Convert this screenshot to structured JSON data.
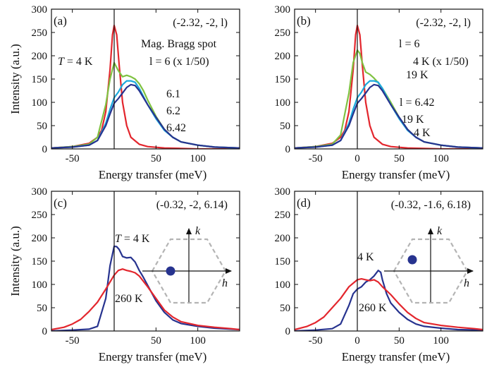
{
  "figure": {
    "colors": {
      "red": "#e3262d",
      "green": "#7fc241",
      "cyan": "#1ba8dc",
      "navy": "#27338f",
      "gray": "#b4b4b4",
      "axis": "#111111"
    }
  },
  "chart_data": [
    {
      "type": "line",
      "panel_label": "(a)",
      "coords": "(-2.32, -2, l)",
      "xlabel": "Energy transfer (meV)",
      "ylabel": "Intensity (a.u.)",
      "xlim": [
        -75,
        150
      ],
      "ylim": [
        0,
        300
      ],
      "xticks": [
        -50,
        0,
        50,
        100
      ],
      "xtick_labels": [
        "-50",
        "",
        "50",
        "100"
      ],
      "yticks": [
        0,
        50,
        100,
        150,
        200,
        250,
        300
      ],
      "ytick_labels": [
        "0",
        "50",
        "100",
        "150",
        "200",
        "250",
        "300"
      ],
      "series": [
        {
          "name": "Mag. Bragg spot l = 6 (x 1/50)",
          "color": "red",
          "x": [
            -75,
            -50,
            -30,
            -20,
            -15,
            -10,
            -5,
            -2,
            0,
            3,
            6,
            10,
            15,
            20,
            30,
            40,
            60,
            80,
            100,
            150
          ],
          "y": [
            2,
            5,
            12,
            25,
            40,
            80,
            170,
            245,
            265,
            245,
            180,
            100,
            50,
            25,
            10,
            5,
            2,
            1,
            0,
            0
          ]
        },
        {
          "name": "6.1",
          "color": "green",
          "x": [
            -75,
            -50,
            -30,
            -20,
            -10,
            -5,
            0,
            5,
            10,
            15,
            20,
            25,
            30,
            35,
            40,
            50,
            60,
            70,
            80,
            100,
            120,
            150
          ],
          "y": [
            2,
            5,
            10,
            25,
            95,
            150,
            185,
            168,
            155,
            158,
            155,
            150,
            140,
            125,
            105,
            70,
            42,
            25,
            15,
            8,
            4,
            2
          ]
        },
        {
          "name": "6.2",
          "color": "cyan",
          "x": [
            -75,
            -50,
            -30,
            -20,
            -10,
            -5,
            0,
            5,
            10,
            15,
            20,
            25,
            30,
            40,
            50,
            60,
            70,
            80,
            100,
            120,
            150
          ],
          "y": [
            2,
            4,
            8,
            18,
            55,
            85,
            110,
            122,
            138,
            146,
            146,
            143,
            130,
            95,
            65,
            40,
            25,
            15,
            8,
            4,
            2
          ]
        },
        {
          "name": "6.42",
          "color": "navy",
          "x": [
            -75,
            -50,
            -30,
            -20,
            -10,
            -5,
            0,
            5,
            10,
            15,
            20,
            25,
            30,
            40,
            50,
            60,
            70,
            80,
            100,
            120,
            150
          ],
          "y": [
            2,
            4,
            8,
            18,
            50,
            75,
            98,
            108,
            120,
            132,
            138,
            136,
            125,
            95,
            68,
            42,
            25,
            15,
            8,
            4,
            2
          ]
        }
      ],
      "annotations": [
        {
          "id": "temp",
          "text_prefix": "T",
          "text": " = 4 K",
          "color": "axis"
        },
        {
          "id": "bragg1",
          "text": "Mag. Bragg spot",
          "color": "red"
        },
        {
          "id": "bragg2",
          "text": "l = 6  (x 1/50)",
          "color": "red"
        },
        {
          "id": "l61",
          "text": "6.1",
          "color": "green"
        },
        {
          "id": "l62",
          "text": "6.2",
          "color": "cyan"
        },
        {
          "id": "l642",
          "text": "6.42",
          "color": "navy"
        }
      ]
    },
    {
      "type": "line",
      "panel_label": "(b)",
      "coords": "(-2.32, -2, l)",
      "xlabel": "Energy transfer (meV)",
      "ylabel": "",
      "xlim": [
        -75,
        150
      ],
      "ylim": [
        0,
        300
      ],
      "xticks": [
        -50,
        0,
        50,
        100
      ],
      "xtick_labels": [
        "-50",
        "0",
        "50",
        "100"
      ],
      "yticks": [
        0,
        50,
        100,
        150,
        200,
        250,
        300
      ],
      "ytick_labels": [
        "0",
        "50",
        "100",
        "150",
        "200",
        "250",
        "300"
      ],
      "series": [
        {
          "name": "l = 6, 4 K (x 1/50)",
          "color": "red",
          "x": [
            -75,
            -50,
            -30,
            -20,
            -15,
            -10,
            -5,
            -2,
            0,
            3,
            6,
            10,
            15,
            20,
            30,
            40,
            60,
            80,
            100,
            150
          ],
          "y": [
            2,
            5,
            12,
            25,
            40,
            80,
            170,
            245,
            265,
            245,
            180,
            100,
            50,
            25,
            10,
            5,
            2,
            1,
            0,
            0
          ]
        },
        {
          "name": "l = 6, 19 K",
          "color": "green",
          "x": [
            -75,
            -50,
            -30,
            -20,
            -10,
            -5,
            0,
            3,
            6,
            10,
            15,
            20,
            25,
            30,
            40,
            50,
            60,
            70,
            80,
            100,
            120,
            150
          ],
          "y": [
            2,
            5,
            10,
            30,
            120,
            185,
            212,
            205,
            185,
            165,
            160,
            152,
            142,
            130,
            100,
            68,
            42,
            25,
            15,
            8,
            4,
            2
          ]
        },
        {
          "name": "l = 6.42, 19 K",
          "color": "cyan",
          "x": [
            -75,
            -50,
            -30,
            -20,
            -10,
            -5,
            0,
            5,
            10,
            15,
            20,
            25,
            30,
            40,
            50,
            60,
            70,
            80,
            100,
            120,
            150
          ],
          "y": [
            2,
            4,
            8,
            18,
            55,
            85,
            110,
            122,
            138,
            146,
            146,
            143,
            130,
            95,
            65,
            40,
            25,
            15,
            8,
            4,
            2
          ]
        },
        {
          "name": "l = 6.42, 4 K",
          "color": "navy",
          "x": [
            -75,
            -50,
            -30,
            -20,
            -10,
            -5,
            0,
            5,
            10,
            15,
            20,
            25,
            30,
            40,
            50,
            60,
            70,
            80,
            100,
            120,
            150
          ],
          "y": [
            2,
            4,
            8,
            18,
            50,
            75,
            98,
            108,
            120,
            132,
            138,
            136,
            125,
            95,
            68,
            42,
            25,
            15,
            8,
            4,
            2
          ]
        }
      ],
      "annotations": [
        {
          "id": "l6",
          "text": "l = 6",
          "color": "axis"
        },
        {
          "id": "k4",
          "text": "4 K  (x 1/50)",
          "color": "red"
        },
        {
          "id": "k19a",
          "text": "19 K",
          "color": "green"
        },
        {
          "id": "l642",
          "text": "l = 6.42",
          "color": "axis"
        },
        {
          "id": "k19b",
          "text": "19 K",
          "color": "cyan"
        },
        {
          "id": "k4b",
          "text": "4 K",
          "color": "navy"
        }
      ]
    },
    {
      "type": "line",
      "panel_label": "(c)",
      "coords": "(-0.32, -2, 6.14)",
      "xlabel": "Energy transfer (meV)",
      "ylabel": "Intensity (a.u.)",
      "xlim": [
        -75,
        150
      ],
      "ylim": [
        0,
        300
      ],
      "xticks": [
        -50,
        0,
        50,
        100
      ],
      "xtick_labels": [
        "-50",
        "",
        "50",
        "100"
      ],
      "yticks": [
        0,
        50,
        100,
        150,
        200,
        250,
        300
      ],
      "ytick_labels": [
        "0",
        "50",
        "100",
        "150",
        "200",
        "250",
        "300"
      ],
      "series": [
        {
          "name": "T = 4 K",
          "color": "navy",
          "x": [
            -75,
            -50,
            -30,
            -20,
            -10,
            -5,
            0,
            3,
            6,
            10,
            15,
            20,
            25,
            30,
            35,
            40,
            50,
            60,
            70,
            80,
            100,
            120,
            150
          ],
          "y": [
            0,
            2,
            4,
            10,
            70,
            140,
            182,
            181,
            175,
            160,
            157,
            158,
            148,
            130,
            115,
            98,
            65,
            40,
            24,
            16,
            10,
            6,
            3
          ]
        },
        {
          "name": "260 K",
          "color": "red",
          "x": [
            -75,
            -60,
            -50,
            -40,
            -30,
            -20,
            -10,
            0,
            5,
            10,
            15,
            20,
            25,
            30,
            40,
            50,
            60,
            70,
            80,
            100,
            120,
            140,
            150
          ],
          "y": [
            3,
            8,
            15,
            25,
            42,
            62,
            90,
            120,
            130,
            133,
            130,
            128,
            125,
            118,
            95,
            70,
            45,
            30,
            20,
            12,
            8,
            5,
            3
          ]
        }
      ],
      "annotations": [
        {
          "id": "t4",
          "text_prefix": "T",
          "text": " = 4 K",
          "color": "navy"
        },
        {
          "id": "t260",
          "text": "260 K",
          "color": "red"
        }
      ],
      "inset": {
        "k_label": "k",
        "h_label": "h",
        "dot": "left"
      }
    },
    {
      "type": "line",
      "panel_label": "(d)",
      "coords": "(-0.32, -1.6, 6.18)",
      "xlabel": "Energy transfer (meV)",
      "ylabel": "",
      "xlim": [
        -75,
        150
      ],
      "ylim": [
        0,
        300
      ],
      "xticks": [
        -50,
        0,
        50,
        100
      ],
      "xtick_labels": [
        "-50",
        "0",
        "50",
        "100"
      ],
      "yticks": [
        0,
        50,
        100,
        150,
        200,
        250,
        300
      ],
      "ytick_labels": [
        "0",
        "50",
        "100",
        "150",
        "200",
        "250",
        "300"
      ],
      "series": [
        {
          "name": "4 K",
          "color": "navy",
          "x": [
            -75,
            -50,
            -30,
            -20,
            -10,
            -5,
            0,
            5,
            10,
            15,
            20,
            25,
            28,
            30,
            35,
            40,
            50,
            60,
            70,
            80,
            100,
            120,
            150
          ],
          "y": [
            0,
            2,
            5,
            15,
            55,
            80,
            90,
            95,
            105,
            110,
            118,
            130,
            126,
            110,
            80,
            60,
            40,
            25,
            15,
            10,
            6,
            3,
            2
          ]
        },
        {
          "name": "260 K",
          "color": "red",
          "x": [
            -75,
            -60,
            -50,
            -40,
            -30,
            -20,
            -10,
            0,
            5,
            10,
            15,
            20,
            25,
            30,
            40,
            50,
            60,
            70,
            80,
            100,
            120,
            140,
            150
          ],
          "y": [
            3,
            10,
            18,
            30,
            50,
            70,
            95,
            110,
            112,
            110,
            108,
            110,
            105,
            95,
            78,
            58,
            40,
            27,
            18,
            12,
            8,
            5,
            3
          ]
        }
      ],
      "annotations": [
        {
          "id": "k4",
          "text": "4 K",
          "color": "navy"
        },
        {
          "id": "k260",
          "text": "260 K",
          "color": "red"
        }
      ],
      "inset": {
        "k_label": "k",
        "h_label": "h",
        "dot": "upper-left"
      }
    }
  ]
}
